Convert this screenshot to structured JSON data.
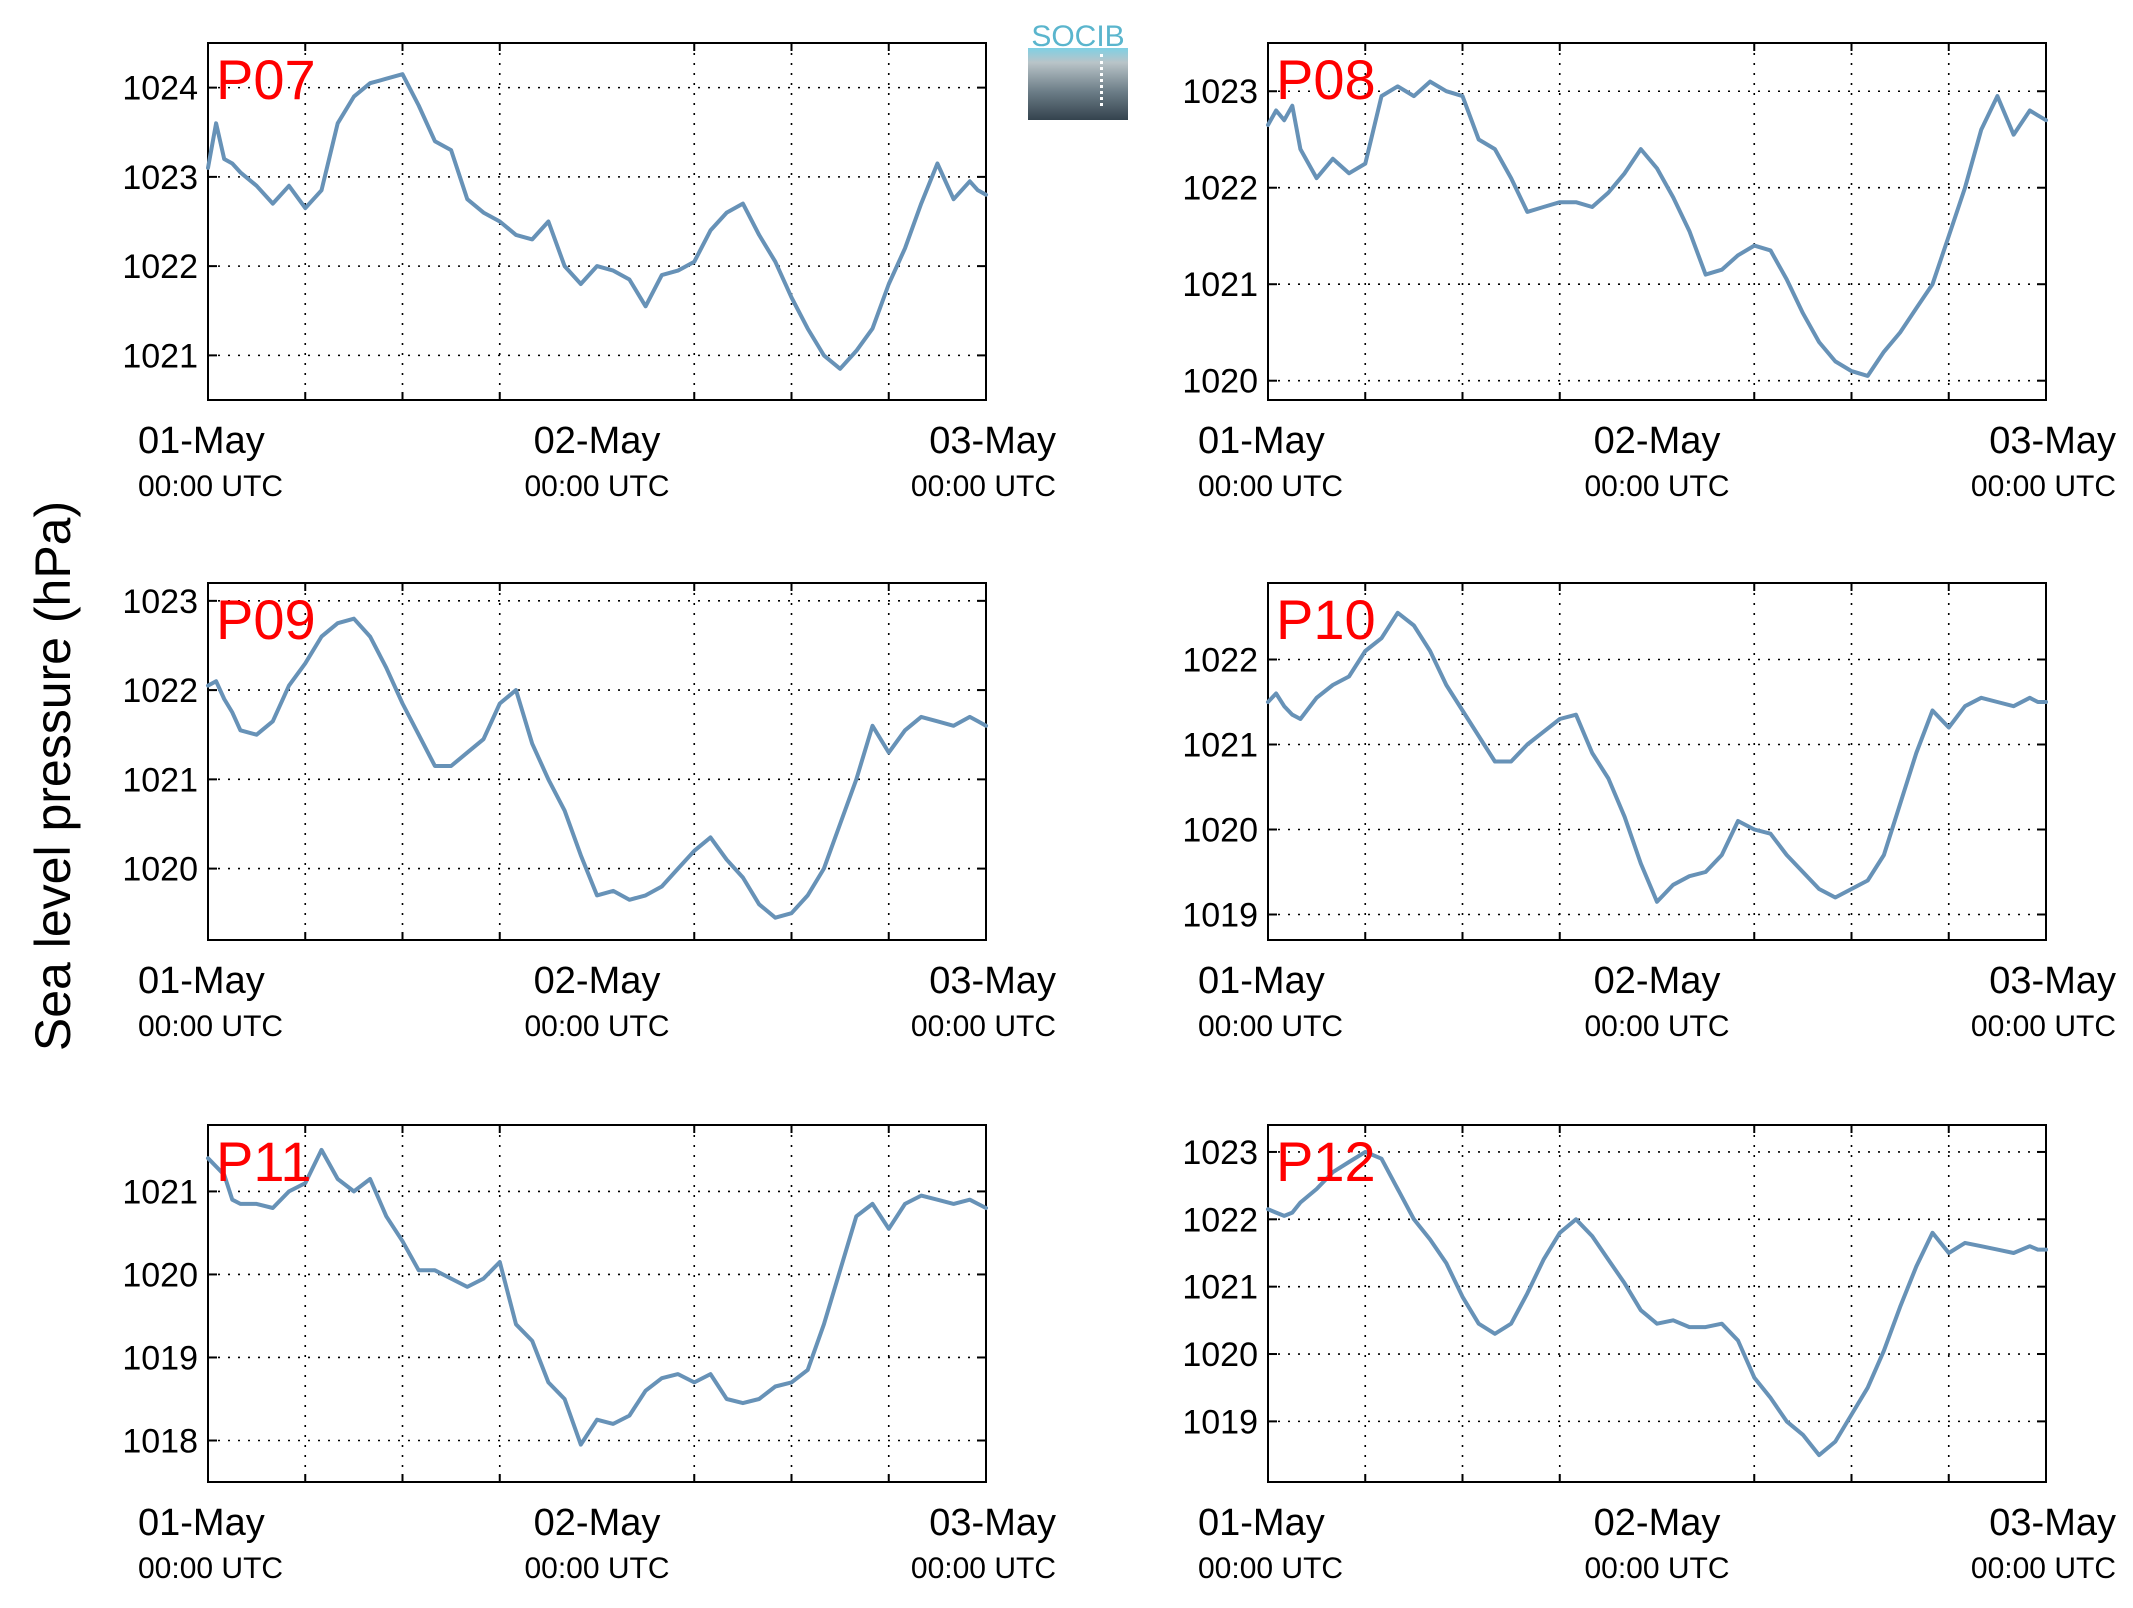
{
  "figure": {
    "ylabel": "Sea level pressure (hPa)",
    "logo_text": "SOCIB",
    "line_color": "#6792b7",
    "label_color": "#ff0000"
  },
  "chart_data": [
    {
      "type": "line",
      "name": "P07",
      "ylim": [
        1020.5,
        1024.5
      ],
      "yticks": [
        1021,
        1022,
        1023,
        1024
      ],
      "x_hours": [
        0,
        0.5,
        1,
        1.5,
        2,
        3,
        4,
        5,
        6,
        7,
        8,
        9,
        10,
        11,
        12,
        13,
        14,
        15,
        16,
        17,
        18,
        19,
        20,
        21,
        22,
        23,
        24,
        25,
        26,
        27,
        28,
        29,
        30,
        31,
        32,
        33,
        34,
        35,
        36,
        37,
        38,
        39,
        40,
        41,
        42,
        43,
        44,
        45,
        46,
        47,
        47.5,
        48
      ],
      "values": [
        1023.1,
        1023.6,
        1023.2,
        1023.15,
        1023.05,
        1022.9,
        1022.7,
        1022.9,
        1022.65,
        1022.85,
        1023.6,
        1023.9,
        1024.05,
        1024.1,
        1024.15,
        1023.8,
        1023.4,
        1023.3,
        1022.75,
        1022.6,
        1022.5,
        1022.35,
        1022.3,
        1022.5,
        1022.0,
        1021.8,
        1022.0,
        1021.95,
        1021.85,
        1021.55,
        1021.9,
        1021.95,
        1022.05,
        1022.4,
        1022.6,
        1022.7,
        1022.35,
        1022.05,
        1021.65,
        1021.3,
        1021.0,
        1020.85,
        1021.05,
        1021.3,
        1021.8,
        1022.2,
        1022.7,
        1023.15,
        1022.75,
        1022.95,
        1022.85,
        1022.8
      ]
    },
    {
      "type": "line",
      "name": "P08",
      "ylim": [
        1019.8,
        1023.5
      ],
      "yticks": [
        1020,
        1021,
        1022,
        1023
      ],
      "x_hours": [
        0,
        0.5,
        1,
        1.5,
        2,
        3,
        4,
        5,
        6,
        7,
        8,
        9,
        10,
        11,
        12,
        13,
        14,
        15,
        16,
        17,
        18,
        19,
        20,
        21,
        22,
        23,
        24,
        25,
        26,
        27,
        28,
        29,
        30,
        31,
        32,
        33,
        34,
        35,
        36,
        37,
        38,
        39,
        40,
        41,
        42,
        43,
        44,
        45,
        46,
        47,
        47.5,
        48
      ],
      "values": [
        1022.65,
        1022.8,
        1022.7,
        1022.85,
        1022.4,
        1022.1,
        1022.3,
        1022.15,
        1022.25,
        1022.95,
        1023.05,
        1022.95,
        1023.1,
        1023.0,
        1022.95,
        1022.5,
        1022.4,
        1022.1,
        1021.75,
        1021.8,
        1021.85,
        1021.85,
        1021.8,
        1021.95,
        1022.15,
        1022.4,
        1022.2,
        1021.9,
        1021.55,
        1021.1,
        1021.15,
        1021.3,
        1021.4,
        1021.35,
        1021.05,
        1020.7,
        1020.4,
        1020.2,
        1020.1,
        1020.05,
        1020.3,
        1020.5,
        1020.75,
        1021.0,
        1021.5,
        1022.0,
        1022.6,
        1022.95,
        1022.55,
        1022.8,
        1022.75,
        1022.7
      ]
    },
    {
      "type": "line",
      "name": "P09",
      "ylim": [
        1019.2,
        1023.2
      ],
      "yticks": [
        1020,
        1021,
        1022,
        1023
      ],
      "x_hours": [
        0,
        0.5,
        1,
        1.5,
        2,
        3,
        4,
        5,
        6,
        7,
        8,
        9,
        10,
        11,
        12,
        13,
        14,
        15,
        16,
        17,
        18,
        19,
        20,
        21,
        22,
        23,
        24,
        25,
        26,
        27,
        28,
        29,
        30,
        31,
        32,
        33,
        34,
        35,
        36,
        37,
        38,
        39,
        40,
        41,
        42,
        43,
        44,
        45,
        46,
        47,
        47.5,
        48
      ],
      "values": [
        1022.05,
        1022.1,
        1021.9,
        1021.75,
        1021.55,
        1021.5,
        1021.65,
        1022.05,
        1022.3,
        1022.6,
        1022.75,
        1022.8,
        1022.6,
        1022.25,
        1021.85,
        1021.5,
        1021.15,
        1021.15,
        1021.3,
        1021.45,
        1021.85,
        1022.0,
        1021.4,
        1021.0,
        1020.65,
        1020.15,
        1019.7,
        1019.75,
        1019.65,
        1019.7,
        1019.8,
        1020.0,
        1020.2,
        1020.35,
        1020.1,
        1019.9,
        1019.6,
        1019.45,
        1019.5,
        1019.7,
        1020.0,
        1020.5,
        1021.0,
        1021.6,
        1021.3,
        1021.55,
        1021.7,
        1021.65,
        1021.6,
        1021.7,
        1021.65,
        1021.6
      ]
    },
    {
      "type": "line",
      "name": "P10",
      "ylim": [
        1018.7,
        1022.9
      ],
      "yticks": [
        1019,
        1020,
        1021,
        1022
      ],
      "x_hours": [
        0,
        0.5,
        1,
        1.5,
        2,
        3,
        4,
        5,
        6,
        7,
        8,
        9,
        10,
        11,
        12,
        13,
        14,
        15,
        16,
        17,
        18,
        19,
        20,
        21,
        22,
        23,
        24,
        25,
        26,
        27,
        28,
        29,
        30,
        31,
        32,
        33,
        34,
        35,
        36,
        37,
        38,
        39,
        40,
        41,
        42,
        43,
        44,
        45,
        46,
        47,
        47.5,
        48
      ],
      "values": [
        1021.5,
        1021.6,
        1021.45,
        1021.35,
        1021.3,
        1021.55,
        1021.7,
        1021.8,
        1022.1,
        1022.25,
        1022.55,
        1022.4,
        1022.1,
        1021.7,
        1021.4,
        1021.1,
        1020.8,
        1020.8,
        1021.0,
        1021.15,
        1021.3,
        1021.35,
        1020.9,
        1020.6,
        1020.15,
        1019.6,
        1019.15,
        1019.35,
        1019.45,
        1019.5,
        1019.7,
        1020.1,
        1020.0,
        1019.95,
        1019.7,
        1019.5,
        1019.3,
        1019.2,
        1019.3,
        1019.4,
        1019.7,
        1020.3,
        1020.9,
        1021.4,
        1021.2,
        1021.45,
        1021.55,
        1021.5,
        1021.45,
        1021.55,
        1021.5,
        1021.5
      ]
    },
    {
      "type": "line",
      "name": "P11",
      "ylim": [
        1017.5,
        1021.8
      ],
      "yticks": [
        1018,
        1019,
        1020,
        1021
      ],
      "x_hours": [
        0,
        0.5,
        1,
        1.5,
        2,
        3,
        4,
        5,
        6,
        7,
        8,
        9,
        10,
        11,
        12,
        13,
        14,
        15,
        16,
        17,
        18,
        19,
        20,
        21,
        22,
        23,
        24,
        25,
        26,
        27,
        28,
        29,
        30,
        31,
        32,
        33,
        34,
        35,
        36,
        37,
        38,
        39,
        40,
        41,
        42,
        43,
        44,
        45,
        46,
        47,
        47.5,
        48
      ],
      "values": [
        1021.4,
        1021.3,
        1021.2,
        1020.9,
        1020.85,
        1020.85,
        1020.8,
        1021.0,
        1021.1,
        1021.5,
        1021.15,
        1021.0,
        1021.15,
        1020.7,
        1020.4,
        1020.05,
        1020.05,
        1019.95,
        1019.85,
        1019.95,
        1020.15,
        1019.4,
        1019.2,
        1018.7,
        1018.5,
        1017.95,
        1018.25,
        1018.2,
        1018.3,
        1018.6,
        1018.75,
        1018.8,
        1018.7,
        1018.8,
        1018.5,
        1018.45,
        1018.5,
        1018.65,
        1018.7,
        1018.85,
        1019.4,
        1020.05,
        1020.7,
        1020.85,
        1020.55,
        1020.85,
        1020.95,
        1020.9,
        1020.85,
        1020.9,
        1020.85,
        1020.8
      ]
    },
    {
      "type": "line",
      "name": "P12",
      "ylim": [
        1018.1,
        1023.4
      ],
      "yticks": [
        1019,
        1020,
        1021,
        1022,
        1023
      ],
      "x_hours": [
        0,
        0.5,
        1,
        1.5,
        2,
        3,
        4,
        5,
        6,
        7,
        8,
        9,
        10,
        11,
        12,
        13,
        14,
        15,
        16,
        17,
        18,
        19,
        20,
        21,
        22,
        23,
        24,
        25,
        26,
        27,
        28,
        29,
        30,
        31,
        32,
        33,
        34,
        35,
        36,
        37,
        38,
        39,
        40,
        41,
        42,
        43,
        44,
        45,
        46,
        47,
        47.5,
        48
      ],
      "values": [
        1022.15,
        1022.1,
        1022.05,
        1022.1,
        1022.25,
        1022.45,
        1022.7,
        1022.85,
        1023.0,
        1022.9,
        1022.45,
        1022.0,
        1021.7,
        1021.35,
        1020.85,
        1020.45,
        1020.3,
        1020.45,
        1020.9,
        1021.4,
        1021.8,
        1022.0,
        1021.75,
        1021.4,
        1021.05,
        1020.65,
        1020.45,
        1020.5,
        1020.4,
        1020.4,
        1020.45,
        1020.2,
        1019.65,
        1019.35,
        1019.0,
        1018.8,
        1018.5,
        1018.7,
        1019.1,
        1019.5,
        1020.05,
        1020.7,
        1021.3,
        1021.8,
        1021.5,
        1021.65,
        1021.6,
        1021.55,
        1021.5,
        1021.6,
        1021.55,
        1021.55
      ]
    }
  ],
  "x_axis": {
    "tick_hours": [
      0,
      24,
      48
    ],
    "grid_hours": [
      6,
      12,
      18,
      30,
      36,
      42
    ],
    "date_labels": [
      "01-May",
      "02-May",
      "03-May"
    ],
    "time_label": "00:00 UTC"
  }
}
